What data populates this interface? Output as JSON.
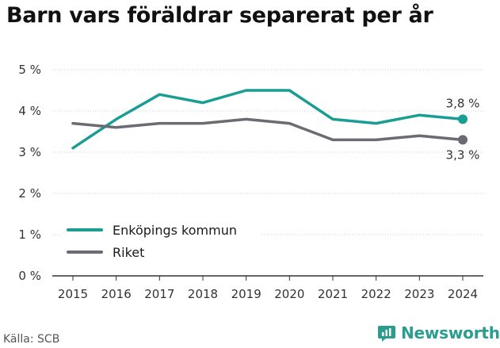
{
  "header": {
    "title": "Barn vars föräldrar separerat per år"
  },
  "footer": {
    "source": "Källa: SCB",
    "brand": "Newsworthy"
  },
  "chart_data": {
    "type": "line",
    "x": [
      2015,
      2016,
      2017,
      2018,
      2019,
      2020,
      2021,
      2022,
      2023,
      2024
    ],
    "series": [
      {
        "name": "Enköpings kommun",
        "color": "#1a9e93",
        "values": [
          3.1,
          3.8,
          4.4,
          4.2,
          4.5,
          4.5,
          3.8,
          3.7,
          3.9,
          3.8
        ],
        "end_label": "3,8 %"
      },
      {
        "name": "Riket",
        "color": "#6b6b73",
        "values": [
          3.7,
          3.6,
          3.7,
          3.7,
          3.8,
          3.7,
          3.3,
          3.3,
          3.4,
          3.3
        ],
        "end_label": "3,3 %"
      }
    ],
    "ylim": [
      0,
      5
    ],
    "yticks": [
      0,
      1,
      2,
      3,
      4,
      5
    ],
    "ytick_labels": [
      "0 %",
      "1 %",
      "2 %",
      "3 %",
      "4 %",
      "5 %"
    ],
    "grid": "horizontal",
    "legend": "bottom-left"
  }
}
